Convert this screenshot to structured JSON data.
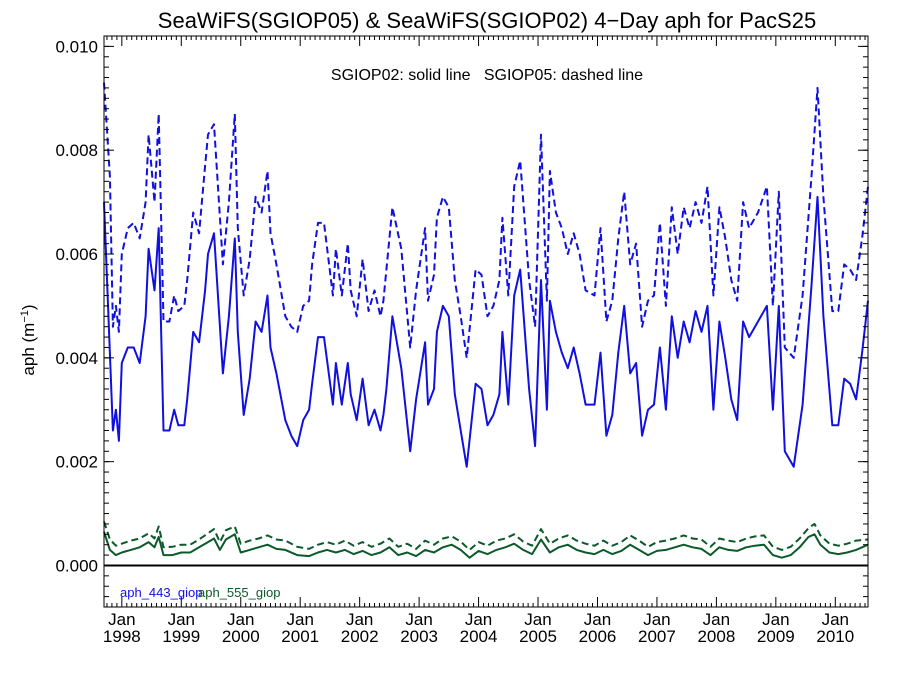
{
  "chart_data": {
    "type": "line",
    "title": "SeaWiFS(SGIOP05) & SeaWiFS(SGIOP02) 4−Day aph for PacS25",
    "note": "SGIOP02: solid line   SGIOP05: dashed line",
    "ylabel": "aph (m",
    "ylabel_sup": "−1",
    "ylabel_close": ")",
    "xlim": [
      1997.7,
      2010.55
    ],
    "ylim": [
      -0.0008,
      0.0102
    ],
    "yticks": [
      {
        "v": 0.0,
        "label": "0.000"
      },
      {
        "v": 0.002,
        "label": "0.002"
      },
      {
        "v": 0.004,
        "label": "0.004"
      },
      {
        "v": 0.006,
        "label": "0.006"
      },
      {
        "v": 0.008,
        "label": "0.008"
      },
      {
        "v": 0.01,
        "label": "0.010"
      }
    ],
    "xticks": [
      {
        "v": 1998,
        "month": "Jan",
        "year": "1998"
      },
      {
        "v": 1999,
        "month": "Jan",
        "year": "1999"
      },
      {
        "v": 2000,
        "month": "Jan",
        "year": "2000"
      },
      {
        "v": 2001,
        "month": "Jan",
        "year": "2001"
      },
      {
        "v": 2002,
        "month": "Jan",
        "year": "2002"
      },
      {
        "v": 2003,
        "month": "Jan",
        "year": "2003"
      },
      {
        "v": 2004,
        "month": "Jan",
        "year": "2004"
      },
      {
        "v": 2005,
        "month": "Jan",
        "year": "2005"
      },
      {
        "v": 2006,
        "month": "Jan",
        "year": "2006"
      },
      {
        "v": 2007,
        "month": "Jan",
        "year": "2007"
      },
      {
        "v": 2008,
        "month": "Jan",
        "year": "2008"
      },
      {
        "v": 2009,
        "month": "Jan",
        "year": "2009"
      },
      {
        "v": 2010,
        "month": "Jan",
        "year": "2010"
      }
    ],
    "zero_line": 0.0,
    "legend": [
      {
        "label": "aph_443_giop",
        "color": "#1010e0"
      },
      {
        "label": "aph_555_giop",
        "color": "#0a5a2a"
      }
    ],
    "series": [
      {
        "name": "aph_443_giop",
        "style": "solid",
        "color": "#1010e0",
        "x": [
          1997.7,
          1997.85,
          1997.9,
          1997.95,
          1998.0,
          1998.1,
          1998.2,
          1998.3,
          1998.4,
          1998.45,
          1998.55,
          1998.62,
          1998.7,
          1998.8,
          1998.88,
          1998.95,
          1999.05,
          1999.1,
          1999.2,
          1999.3,
          1999.4,
          1999.45,
          1999.55,
          1999.7,
          1999.8,
          1999.9,
          1999.95,
          2000.05,
          2000.15,
          2000.25,
          2000.35,
          2000.45,
          2000.5,
          2000.6,
          2000.75,
          2000.85,
          2000.95,
          2001.05,
          2001.15,
          2001.2,
          2001.3,
          2001.4,
          2001.55,
          2001.6,
          2001.7,
          2001.8,
          2001.85,
          2001.95,
          2002.05,
          2002.15,
          2002.25,
          2002.35,
          2002.4,
          2002.45,
          2002.55,
          2002.7,
          2002.85,
          2002.95,
          2003.1,
          2003.15,
          2003.25,
          2003.3,
          2003.4,
          2003.5,
          2003.6,
          2003.7,
          2003.8,
          2003.95,
          2004.05,
          2004.15,
          2004.25,
          2004.35,
          2004.4,
          2004.5,
          2004.6,
          2004.7,
          2004.85,
          2004.95,
          2005.05,
          2005.15,
          2005.2,
          2005.3,
          2005.4,
          2005.5,
          2005.6,
          2005.7,
          2005.8,
          2005.95,
          2006.05,
          2006.15,
          2006.25,
          2006.35,
          2006.45,
          2006.55,
          2006.65,
          2006.75,
          2006.85,
          2006.95,
          2007.05,
          2007.15,
          2007.25,
          2007.35,
          2007.45,
          2007.55,
          2007.65,
          2007.75,
          2007.85,
          2007.95,
          2008.05,
          2008.15,
          2008.25,
          2008.35,
          2008.45,
          2008.55,
          2008.7,
          2008.85,
          2008.95,
          2009.05,
          2009.15,
          2009.3,
          2009.45,
          2009.6,
          2009.7,
          2009.8,
          2009.95,
          2010.05,
          2010.15,
          2010.25,
          2010.35,
          2010.45,
          2010.55
        ],
        "y": [
          0.007,
          0.0026,
          0.003,
          0.0024,
          0.0039,
          0.0042,
          0.0042,
          0.0039,
          0.0048,
          0.0061,
          0.0053,
          0.0065,
          0.0026,
          0.0026,
          0.003,
          0.0027,
          0.0027,
          0.0032,
          0.0045,
          0.0043,
          0.0053,
          0.006,
          0.0064,
          0.0037,
          0.0048,
          0.0063,
          0.0045,
          0.0029,
          0.0036,
          0.0047,
          0.0045,
          0.0052,
          0.0042,
          0.0037,
          0.0028,
          0.0025,
          0.0023,
          0.0028,
          0.003,
          0.0035,
          0.0044,
          0.0044,
          0.0031,
          0.0039,
          0.0031,
          0.0039,
          0.0033,
          0.0028,
          0.0036,
          0.0027,
          0.003,
          0.0026,
          0.0029,
          0.0034,
          0.0048,
          0.0038,
          0.0022,
          0.0032,
          0.0043,
          0.0031,
          0.0034,
          0.0045,
          0.005,
          0.0048,
          0.0033,
          0.0026,
          0.0019,
          0.0035,
          0.0034,
          0.0027,
          0.0029,
          0.0033,
          0.0045,
          0.0031,
          0.0052,
          0.0057,
          0.0034,
          0.0023,
          0.0055,
          0.003,
          0.0051,
          0.0045,
          0.0041,
          0.0038,
          0.0042,
          0.0037,
          0.0031,
          0.0031,
          0.0041,
          0.0025,
          0.0029,
          0.0041,
          0.005,
          0.0037,
          0.0039,
          0.0025,
          0.003,
          0.0031,
          0.0042,
          0.003,
          0.0048,
          0.004,
          0.0047,
          0.0043,
          0.0049,
          0.0045,
          0.005,
          0.003,
          0.0047,
          0.004,
          0.0032,
          0.0028,
          0.0047,
          0.0044,
          0.0047,
          0.005,
          0.003,
          0.005,
          0.0022,
          0.0019,
          0.0031,
          0.0054,
          0.0071,
          0.0048,
          0.0027,
          0.0027,
          0.0036,
          0.0035,
          0.0032,
          0.0041,
          0.0051
        ]
      },
      {
        "name": "aph_443_giop",
        "style": "dashed",
        "color": "#1010e0",
        "x": [
          1997.7,
          1997.8,
          1997.85,
          1997.9,
          1997.95,
          1998.0,
          1998.1,
          1998.2,
          1998.3,
          1998.4,
          1998.45,
          1998.55,
          1998.62,
          1998.7,
          1998.8,
          1998.88,
          1998.95,
          1999.05,
          1999.1,
          1999.2,
          1999.3,
          1999.4,
          1999.45,
          1999.55,
          1999.7,
          1999.8,
          1999.9,
          1999.95,
          2000.05,
          2000.15,
          2000.25,
          2000.35,
          2000.45,
          2000.5,
          2000.6,
          2000.75,
          2000.85,
          2000.95,
          2001.05,
          2001.15,
          2001.2,
          2001.3,
          2001.4,
          2001.55,
          2001.6,
          2001.7,
          2001.8,
          2001.85,
          2001.95,
          2002.05,
          2002.15,
          2002.25,
          2002.35,
          2002.4,
          2002.45,
          2002.55,
          2002.7,
          2002.85,
          2002.95,
          2003.1,
          2003.15,
          2003.25,
          2003.3,
          2003.4,
          2003.5,
          2003.6,
          2003.7,
          2003.8,
          2003.95,
          2004.05,
          2004.15,
          2004.25,
          2004.35,
          2004.4,
          2004.5,
          2004.6,
          2004.7,
          2004.85,
          2004.95,
          2005.05,
          2005.15,
          2005.2,
          2005.3,
          2005.4,
          2005.5,
          2005.6,
          2005.7,
          2005.8,
          2005.95,
          2006.05,
          2006.15,
          2006.25,
          2006.35,
          2006.45,
          2006.55,
          2006.65,
          2006.75,
          2006.85,
          2006.95,
          2007.05,
          2007.15,
          2007.25,
          2007.35,
          2007.45,
          2007.55,
          2007.65,
          2007.75,
          2007.85,
          2007.95,
          2008.05,
          2008.15,
          2008.25,
          2008.35,
          2008.45,
          2008.55,
          2008.7,
          2008.85,
          2008.95,
          2009.05,
          2009.15,
          2009.3,
          2009.45,
          2009.6,
          2009.7,
          2009.8,
          2009.95,
          2010.05,
          2010.15,
          2010.25,
          2010.35,
          2010.45,
          2010.55
        ],
        "y": [
          0.0093,
          0.0075,
          0.0046,
          0.005,
          0.0045,
          0.006,
          0.0065,
          0.0066,
          0.0063,
          0.007,
          0.0083,
          0.007,
          0.0087,
          0.0047,
          0.0047,
          0.0052,
          0.0049,
          0.005,
          0.0055,
          0.0068,
          0.0064,
          0.0077,
          0.0083,
          0.0085,
          0.0058,
          0.007,
          0.0087,
          0.0065,
          0.0052,
          0.0059,
          0.0071,
          0.0068,
          0.0076,
          0.0064,
          0.0058,
          0.0048,
          0.0046,
          0.0045,
          0.005,
          0.0051,
          0.0058,
          0.0066,
          0.0066,
          0.0052,
          0.0061,
          0.0052,
          0.0062,
          0.0053,
          0.0048,
          0.0059,
          0.0049,
          0.0053,
          0.0048,
          0.0051,
          0.0057,
          0.0069,
          0.0061,
          0.0042,
          0.0053,
          0.0065,
          0.0051,
          0.0056,
          0.0067,
          0.0071,
          0.0069,
          0.0055,
          0.0048,
          0.004,
          0.0057,
          0.0056,
          0.0048,
          0.005,
          0.0055,
          0.0067,
          0.0052,
          0.0073,
          0.0078,
          0.0055,
          0.0046,
          0.0083,
          0.0051,
          0.0076,
          0.0068,
          0.0065,
          0.006,
          0.0064,
          0.006,
          0.0053,
          0.0052,
          0.0065,
          0.0047,
          0.0051,
          0.0063,
          0.0072,
          0.0058,
          0.0062,
          0.0046,
          0.0051,
          0.0052,
          0.0066,
          0.005,
          0.0069,
          0.006,
          0.0069,
          0.0065,
          0.007,
          0.0066,
          0.0073,
          0.0052,
          0.0069,
          0.0063,
          0.0055,
          0.0051,
          0.007,
          0.0065,
          0.0068,
          0.0073,
          0.005,
          0.0072,
          0.0042,
          0.004,
          0.0052,
          0.0075,
          0.0092,
          0.0071,
          0.0049,
          0.0049,
          0.0058,
          0.0057,
          0.0055,
          0.0063,
          0.0073
        ]
      },
      {
        "name": "aph_555_giop",
        "style": "solid",
        "color": "#0a5a2a",
        "x": [
          1997.7,
          1997.8,
          1997.9,
          1998.0,
          1998.15,
          1998.3,
          1998.45,
          1998.55,
          1998.62,
          1998.7,
          1998.85,
          1999.0,
          1999.15,
          1999.3,
          1999.45,
          1999.55,
          1999.65,
          1999.75,
          1999.9,
          2000.0,
          2000.15,
          2000.3,
          2000.45,
          2000.6,
          2000.75,
          2000.95,
          2001.15,
          2001.3,
          2001.45,
          2001.6,
          2001.75,
          2001.9,
          2002.05,
          2002.2,
          2002.35,
          2002.5,
          2002.65,
          2002.8,
          2002.95,
          2003.1,
          2003.25,
          2003.4,
          2003.55,
          2003.7,
          2003.85,
          2004.0,
          2004.15,
          2004.3,
          2004.45,
          2004.6,
          2004.75,
          2004.9,
          2005.05,
          2005.2,
          2005.35,
          2005.5,
          2005.65,
          2005.8,
          2005.95,
          2006.1,
          2006.25,
          2006.4,
          2006.55,
          2006.7,
          2006.85,
          2007.0,
          2007.15,
          2007.3,
          2007.45,
          2007.6,
          2007.75,
          2007.9,
          2008.05,
          2008.2,
          2008.35,
          2008.5,
          2008.65,
          2008.8,
          2008.95,
          2009.1,
          2009.25,
          2009.4,
          2009.55,
          2009.65,
          2009.75,
          2009.9,
          2010.05,
          2010.2,
          2010.35,
          2010.55
        ],
        "y": [
          0.00065,
          0.0003,
          0.0002,
          0.00025,
          0.0003,
          0.00035,
          0.00045,
          0.00035,
          0.00055,
          0.0002,
          0.0002,
          0.00025,
          0.00025,
          0.00035,
          0.00045,
          0.00052,
          0.0003,
          0.0005,
          0.0006,
          0.00025,
          0.0003,
          0.00035,
          0.0004,
          0.00032,
          0.0003,
          0.0002,
          0.00018,
          0.00025,
          0.0003,
          0.00025,
          0.0003,
          0.00022,
          0.00028,
          0.0002,
          0.00025,
          0.00035,
          0.0002,
          0.00025,
          0.00018,
          0.0003,
          0.00025,
          0.00035,
          0.0004,
          0.0003,
          0.00015,
          0.00028,
          0.00022,
          0.0003,
          0.00035,
          0.00042,
          0.0003,
          0.00022,
          0.0005,
          0.00025,
          0.00035,
          0.0004,
          0.0003,
          0.00025,
          0.00022,
          0.0003,
          0.00022,
          0.00028,
          0.0004,
          0.0003,
          0.0002,
          0.00028,
          0.0003,
          0.00035,
          0.0004,
          0.00035,
          0.00032,
          0.0002,
          0.00035,
          0.0003,
          0.00028,
          0.00035,
          0.00038,
          0.0004,
          0.0002,
          0.00015,
          0.0002,
          0.00035,
          0.00055,
          0.0006,
          0.0004,
          0.00025,
          0.00022,
          0.00025,
          0.0003,
          0.0004
        ]
      },
      {
        "name": "aph_555_giop",
        "style": "dashed",
        "color": "#0a5a2a",
        "x": [
          1997.7,
          1997.8,
          1997.9,
          1998.0,
          1998.15,
          1998.3,
          1998.45,
          1998.55,
          1998.62,
          1998.7,
          1998.85,
          1999.0,
          1999.15,
          1999.3,
          1999.45,
          1999.55,
          1999.65,
          1999.75,
          1999.9,
          2000.0,
          2000.15,
          2000.3,
          2000.45,
          2000.6,
          2000.75,
          2000.95,
          2001.15,
          2001.3,
          2001.45,
          2001.6,
          2001.75,
          2001.9,
          2002.05,
          2002.2,
          2002.35,
          2002.5,
          2002.65,
          2002.8,
          2002.95,
          2003.1,
          2003.25,
          2003.4,
          2003.55,
          2003.7,
          2003.85,
          2004.0,
          2004.15,
          2004.3,
          2004.45,
          2004.6,
          2004.75,
          2004.9,
          2005.05,
          2005.2,
          2005.35,
          2005.5,
          2005.65,
          2005.8,
          2005.95,
          2006.1,
          2006.25,
          2006.4,
          2006.55,
          2006.7,
          2006.85,
          2007.0,
          2007.15,
          2007.3,
          2007.45,
          2007.6,
          2007.75,
          2007.9,
          2008.05,
          2008.2,
          2008.35,
          2008.5,
          2008.65,
          2008.8,
          2008.95,
          2009.1,
          2009.25,
          2009.4,
          2009.55,
          2009.65,
          2009.75,
          2009.9,
          2010.05,
          2010.2,
          2010.35,
          2010.55
        ],
        "y": [
          0.00085,
          0.0005,
          0.00038,
          0.00042,
          0.00048,
          0.00052,
          0.00062,
          0.00052,
          0.00075,
          0.00035,
          0.00036,
          0.0004,
          0.0004,
          0.0005,
          0.00062,
          0.0007,
          0.00045,
          0.00068,
          0.00075,
          0.00042,
          0.00048,
          0.00052,
          0.00058,
          0.0005,
          0.00048,
          0.00036,
          0.00032,
          0.0004,
          0.00045,
          0.0004,
          0.00048,
          0.00038,
          0.00045,
          0.00036,
          0.00042,
          0.00052,
          0.00036,
          0.00042,
          0.00032,
          0.00048,
          0.0004,
          0.00052,
          0.00056,
          0.00046,
          0.0003,
          0.00045,
          0.00038,
          0.00048,
          0.00052,
          0.0006,
          0.00046,
          0.00038,
          0.0007,
          0.00042,
          0.00052,
          0.00058,
          0.00048,
          0.00042,
          0.00038,
          0.00048,
          0.00038,
          0.00045,
          0.00058,
          0.00048,
          0.00036,
          0.00045,
          0.00048,
          0.00052,
          0.00058,
          0.00052,
          0.0005,
          0.00036,
          0.00052,
          0.00048,
          0.00045,
          0.00052,
          0.00056,
          0.00058,
          0.00036,
          0.0003,
          0.00036,
          0.00052,
          0.00072,
          0.0008,
          0.00058,
          0.00042,
          0.00038,
          0.00042,
          0.00048,
          0.0005
        ]
      }
    ]
  }
}
